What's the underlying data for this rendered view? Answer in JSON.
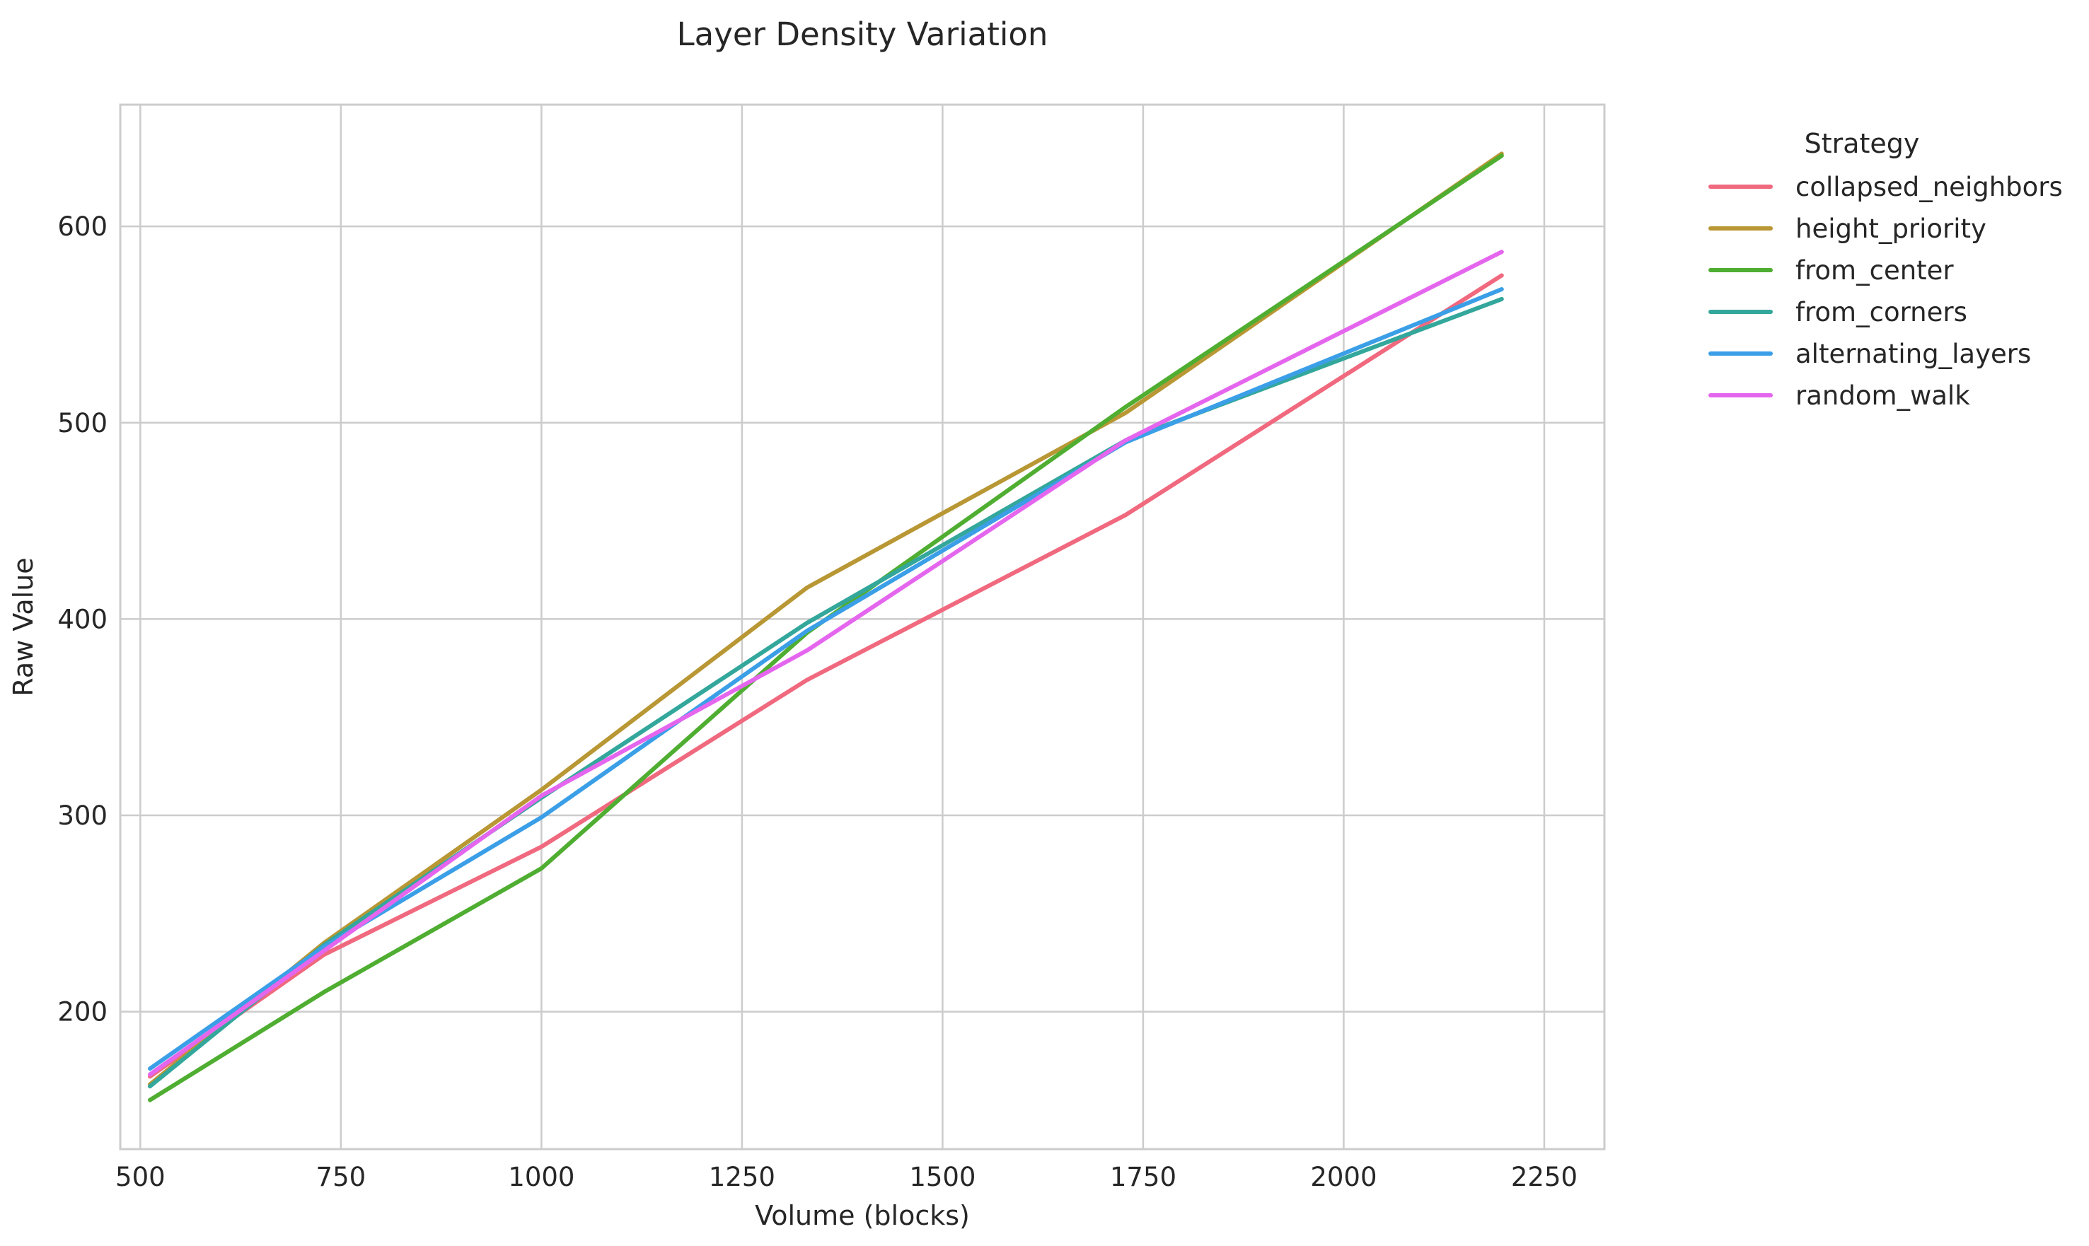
{
  "chart_data": {
    "type": "line",
    "title": "Layer Density Variation",
    "xlabel": "Volume (blocks)",
    "ylabel": "Raw Value",
    "xlim": [
      475,
      2325
    ],
    "ylim": [
      130,
      662
    ],
    "xticks": [
      500,
      750,
      1000,
      1250,
      1500,
      1750,
      2000,
      2250
    ],
    "yticks": [
      200,
      300,
      400,
      500,
      600
    ],
    "grid": true,
    "legend": {
      "title": "Strategy",
      "position": "outside-right-top"
    },
    "x": [
      512,
      729,
      1000,
      1331,
      1728,
      2197
    ],
    "series": [
      {
        "name": "collapsed_neighbors",
        "color": "#f0697e",
        "values": [
          167,
          229,
          284,
          369,
          453,
          575
        ]
      },
      {
        "name": "height_priority",
        "color": "#b89734",
        "values": [
          163,
          235,
          313,
          416,
          505,
          637
        ]
      },
      {
        "name": "from_center",
        "color": "#4fae31",
        "values": [
          155,
          210,
          273,
          393,
          508,
          636
        ]
      },
      {
        "name": "from_corners",
        "color": "#33a79b",
        "values": [
          162,
          234,
          309,
          398,
          491,
          563
        ]
      },
      {
        "name": "alternating_layers",
        "color": "#3b9fe7",
        "values": [
          171,
          233,
          299,
          394,
          490,
          568
        ]
      },
      {
        "name": "random_walk",
        "color": "#e566ee",
        "values": [
          168,
          231,
          310,
          384,
          491,
          587
        ]
      }
    ]
  }
}
